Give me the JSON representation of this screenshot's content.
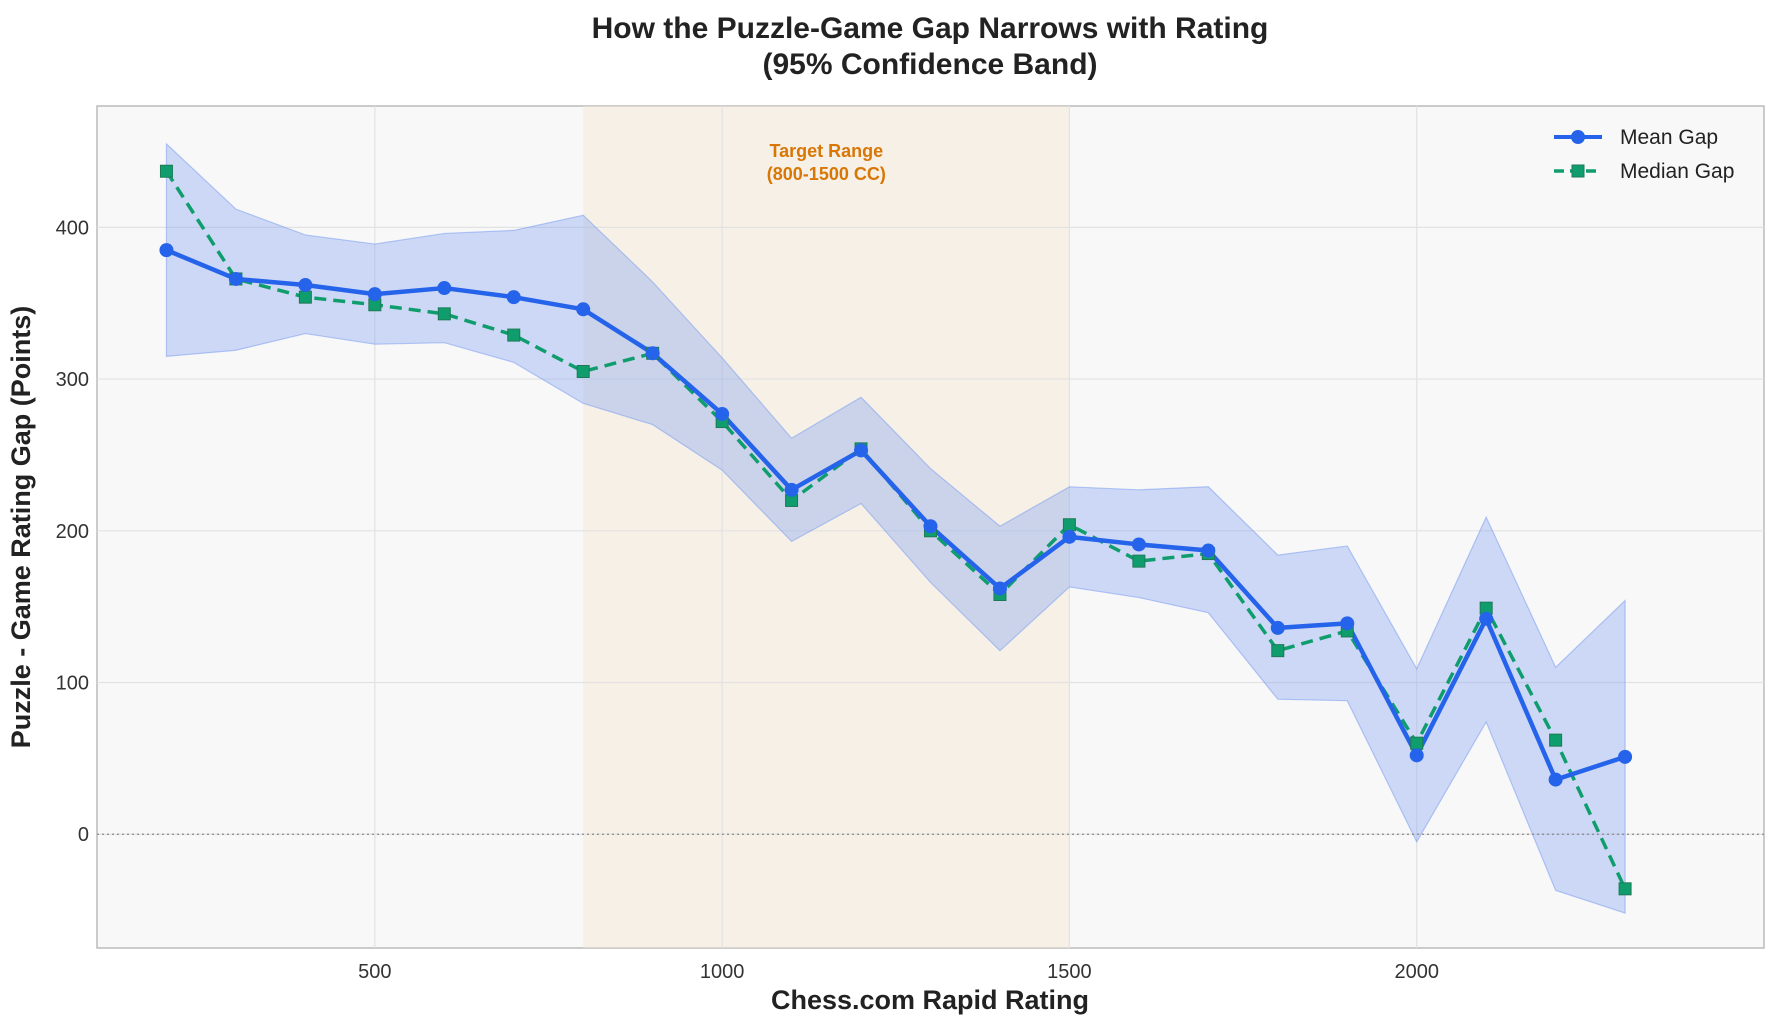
{
  "chart_data": {
    "type": "line",
    "title_line1": "How the Puzzle-Game Gap Narrows with Rating",
    "title_line2": "(95% Confidence Band)",
    "xlabel": "Chess.com Rapid Rating",
    "ylabel": "Puzzle - Game Rating Gap (Points)",
    "xlim": [
      100,
      2500
    ],
    "ylim": [
      -75,
      480
    ],
    "xticks": [
      500,
      1000,
      1500,
      2000
    ],
    "yticks": [
      0,
      100,
      200,
      300,
      400
    ],
    "grid": true,
    "legend_position": "top-right",
    "x": [
      200,
      300,
      400,
      500,
      600,
      700,
      800,
      900,
      1000,
      1100,
      1200,
      1300,
      1400,
      1500,
      1600,
      1700,
      1800,
      1900,
      2000,
      2100,
      2200,
      2300
    ],
    "series": [
      {
        "name": "Mean Gap",
        "color": "#2563eb",
        "style": "solid",
        "marker": "circle",
        "values": [
          385,
          366,
          362,
          356,
          360,
          354,
          346,
          317,
          277,
          227,
          253,
          203,
          162,
          196,
          191,
          187,
          136,
          139,
          52,
          142,
          36,
          51
        ]
      },
      {
        "name": "Median Gap",
        "color": "#0f9d6e",
        "style": "dashed",
        "marker": "square",
        "values": [
          437,
          366,
          354,
          349,
          343,
          329,
          305,
          317,
          272,
          220,
          254,
          200,
          158,
          204,
          180,
          185,
          121,
          134,
          60,
          149,
          62,
          -36
        ]
      }
    ],
    "confidence_band": {
      "color": "#7b9ff0",
      "upper": [
        455,
        412,
        395,
        389,
        396,
        398,
        408,
        364,
        314,
        261,
        288,
        241,
        203,
        229,
        227,
        229,
        184,
        190,
        109,
        209,
        110,
        154
      ],
      "lower": [
        315,
        319,
        330,
        323,
        324,
        311,
        284,
        270,
        240,
        193,
        218,
        166,
        121,
        163,
        156,
        146,
        89,
        88,
        -5,
        74,
        -37,
        -52
      ]
    },
    "target_range": {
      "x_start": 800,
      "x_end": 1500,
      "label_line1": "Target Range",
      "label_line2": "(800-1500 CC)",
      "color": "#f5e6d3"
    },
    "reference_line_y": 0
  }
}
